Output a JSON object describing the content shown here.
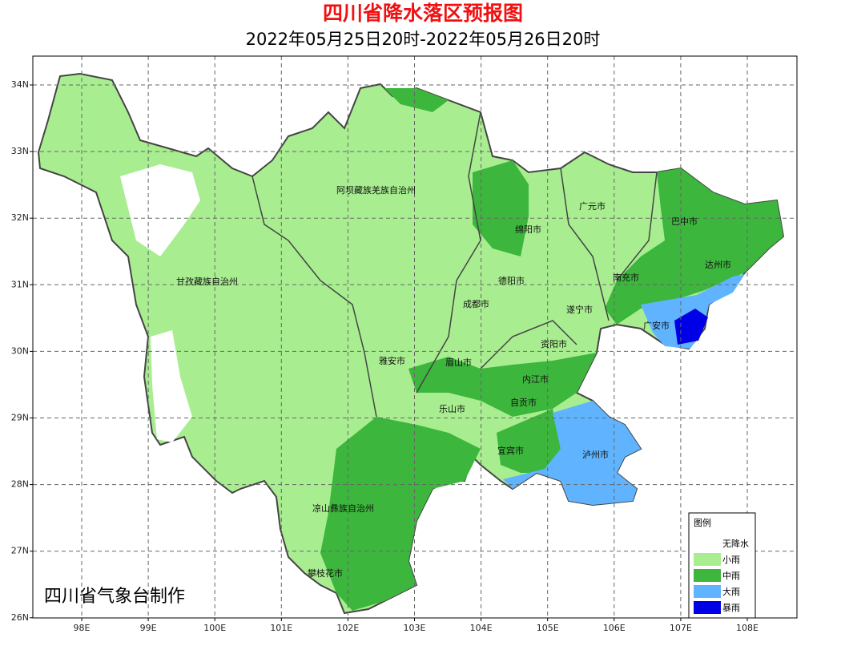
{
  "header": {
    "title": "四川省降水落区预报图",
    "subtitle": "2022年05月25日20时-2022年05月26日20时"
  },
  "map": {
    "lat_ticks": [
      "34N",
      "33N",
      "32N",
      "31N",
      "30N",
      "29N",
      "28N",
      "27N",
      "26N"
    ],
    "lon_ticks": [
      "98E",
      "99E",
      "100E",
      "101E",
      "102E",
      "103E",
      "104E",
      "105E",
      "106E",
      "107E",
      "108E"
    ],
    "regions": [
      "阿坝藏族羌族自治州",
      "甘孜藏族自治州",
      "广元市",
      "巴中市",
      "绵阳市",
      "德阳市",
      "南充市",
      "达州市",
      "成都市",
      "遂宁市",
      "广安市",
      "雅安市",
      "眉山市",
      "资阳市",
      "内江市",
      "自贡市",
      "乐山市",
      "宜宾市",
      "泸州市",
      "凉山彝族自治州",
      "攀枝花市"
    ]
  },
  "legend": {
    "title": "图例",
    "items": [
      {
        "label": "无降水",
        "color": "#ffffff"
      },
      {
        "label": "小雨",
        "color": "#a8ee90"
      },
      {
        "label": "中雨",
        "color": "#3cb63c"
      },
      {
        "label": "大雨",
        "color": "#60b4ff"
      },
      {
        "label": "暴雨",
        "color": "#0000e6"
      }
    ]
  },
  "credit": "四川省气象台制作"
}
